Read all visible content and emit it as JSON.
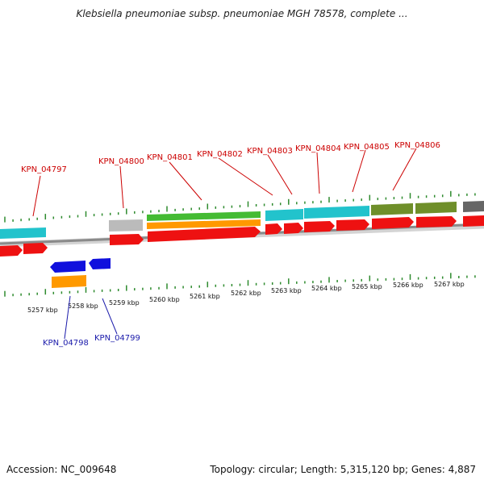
{
  "title": "Klebsiella pneumoniae subsp. pneumoniae MGH 78578, complete ...",
  "footer": {
    "accession": "Accession: NC_009648",
    "topology": "Topology: circular; Length: 5,315,120 bp; Genes: 4,887"
  },
  "colors": {
    "cds": "#ee1111",
    "gene_cyan": "#22c3cc",
    "gene_green": "#44bb33",
    "gene_olive": "#6f8f2a",
    "gene_orange": "#ff9900",
    "gene_gray": "#bbbbbb",
    "gene_darkgray": "#666666",
    "reverse_blue": "#1010dd",
    "ticks": "#2e8b2e",
    "axis": "#888888"
  },
  "scale": {
    "unit": "kbp",
    "labels": [
      "5257 kbp",
      "5258 kbp",
      "5259 kbp",
      "5260 kbp",
      "5261 kbp",
      "5262 kbp",
      "5263 kbp",
      "5264 kbp",
      "5265 kbp",
      "5266 kbp",
      "5267 kbp"
    ]
  },
  "loci_forward": [
    "KPN_04797",
    "KPN_04800",
    "KPN_04801",
    "KPN_04802",
    "KPN_04803",
    "KPN_04804",
    "KPN_04805",
    "KPN_04806"
  ],
  "loci_reverse": [
    "KPN_04798",
    "KPN_04799"
  ]
}
